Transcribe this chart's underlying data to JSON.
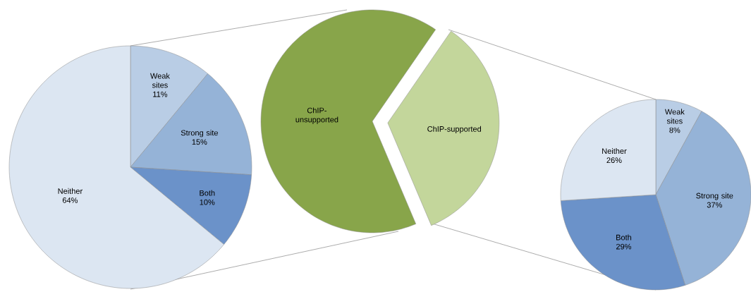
{
  "chart_data": [
    {
      "type": "pie",
      "categories": [
        "Weak sites",
        "Strong site",
        "Both",
        "Neither"
      ],
      "values": [
        11,
        15,
        10,
        64
      ],
      "value_labels": [
        "11%",
        "15%",
        "10%",
        "64%"
      ],
      "colors": [
        "#b9cde5",
        "#95b3d7",
        "#6b92c9",
        "#dce6f2"
      ]
    },
    {
      "type": "pie",
      "categories": [
        "ChIP-unsupported",
        "ChIP-supported"
      ],
      "values": [
        66,
        34
      ],
      "colors": [
        "#88a54a",
        "#c3d69b"
      ]
    },
    {
      "type": "pie",
      "categories": [
        "Weak sites",
        "Strong site",
        "Both",
        "Neither"
      ],
      "values": [
        8,
        37,
        29,
        26
      ],
      "value_labels": [
        "8%",
        "37%",
        "29%",
        "26%"
      ],
      "colors": [
        "#b9cde5",
        "#95b3d7",
        "#6b92c9",
        "#dce6f2"
      ]
    }
  ]
}
